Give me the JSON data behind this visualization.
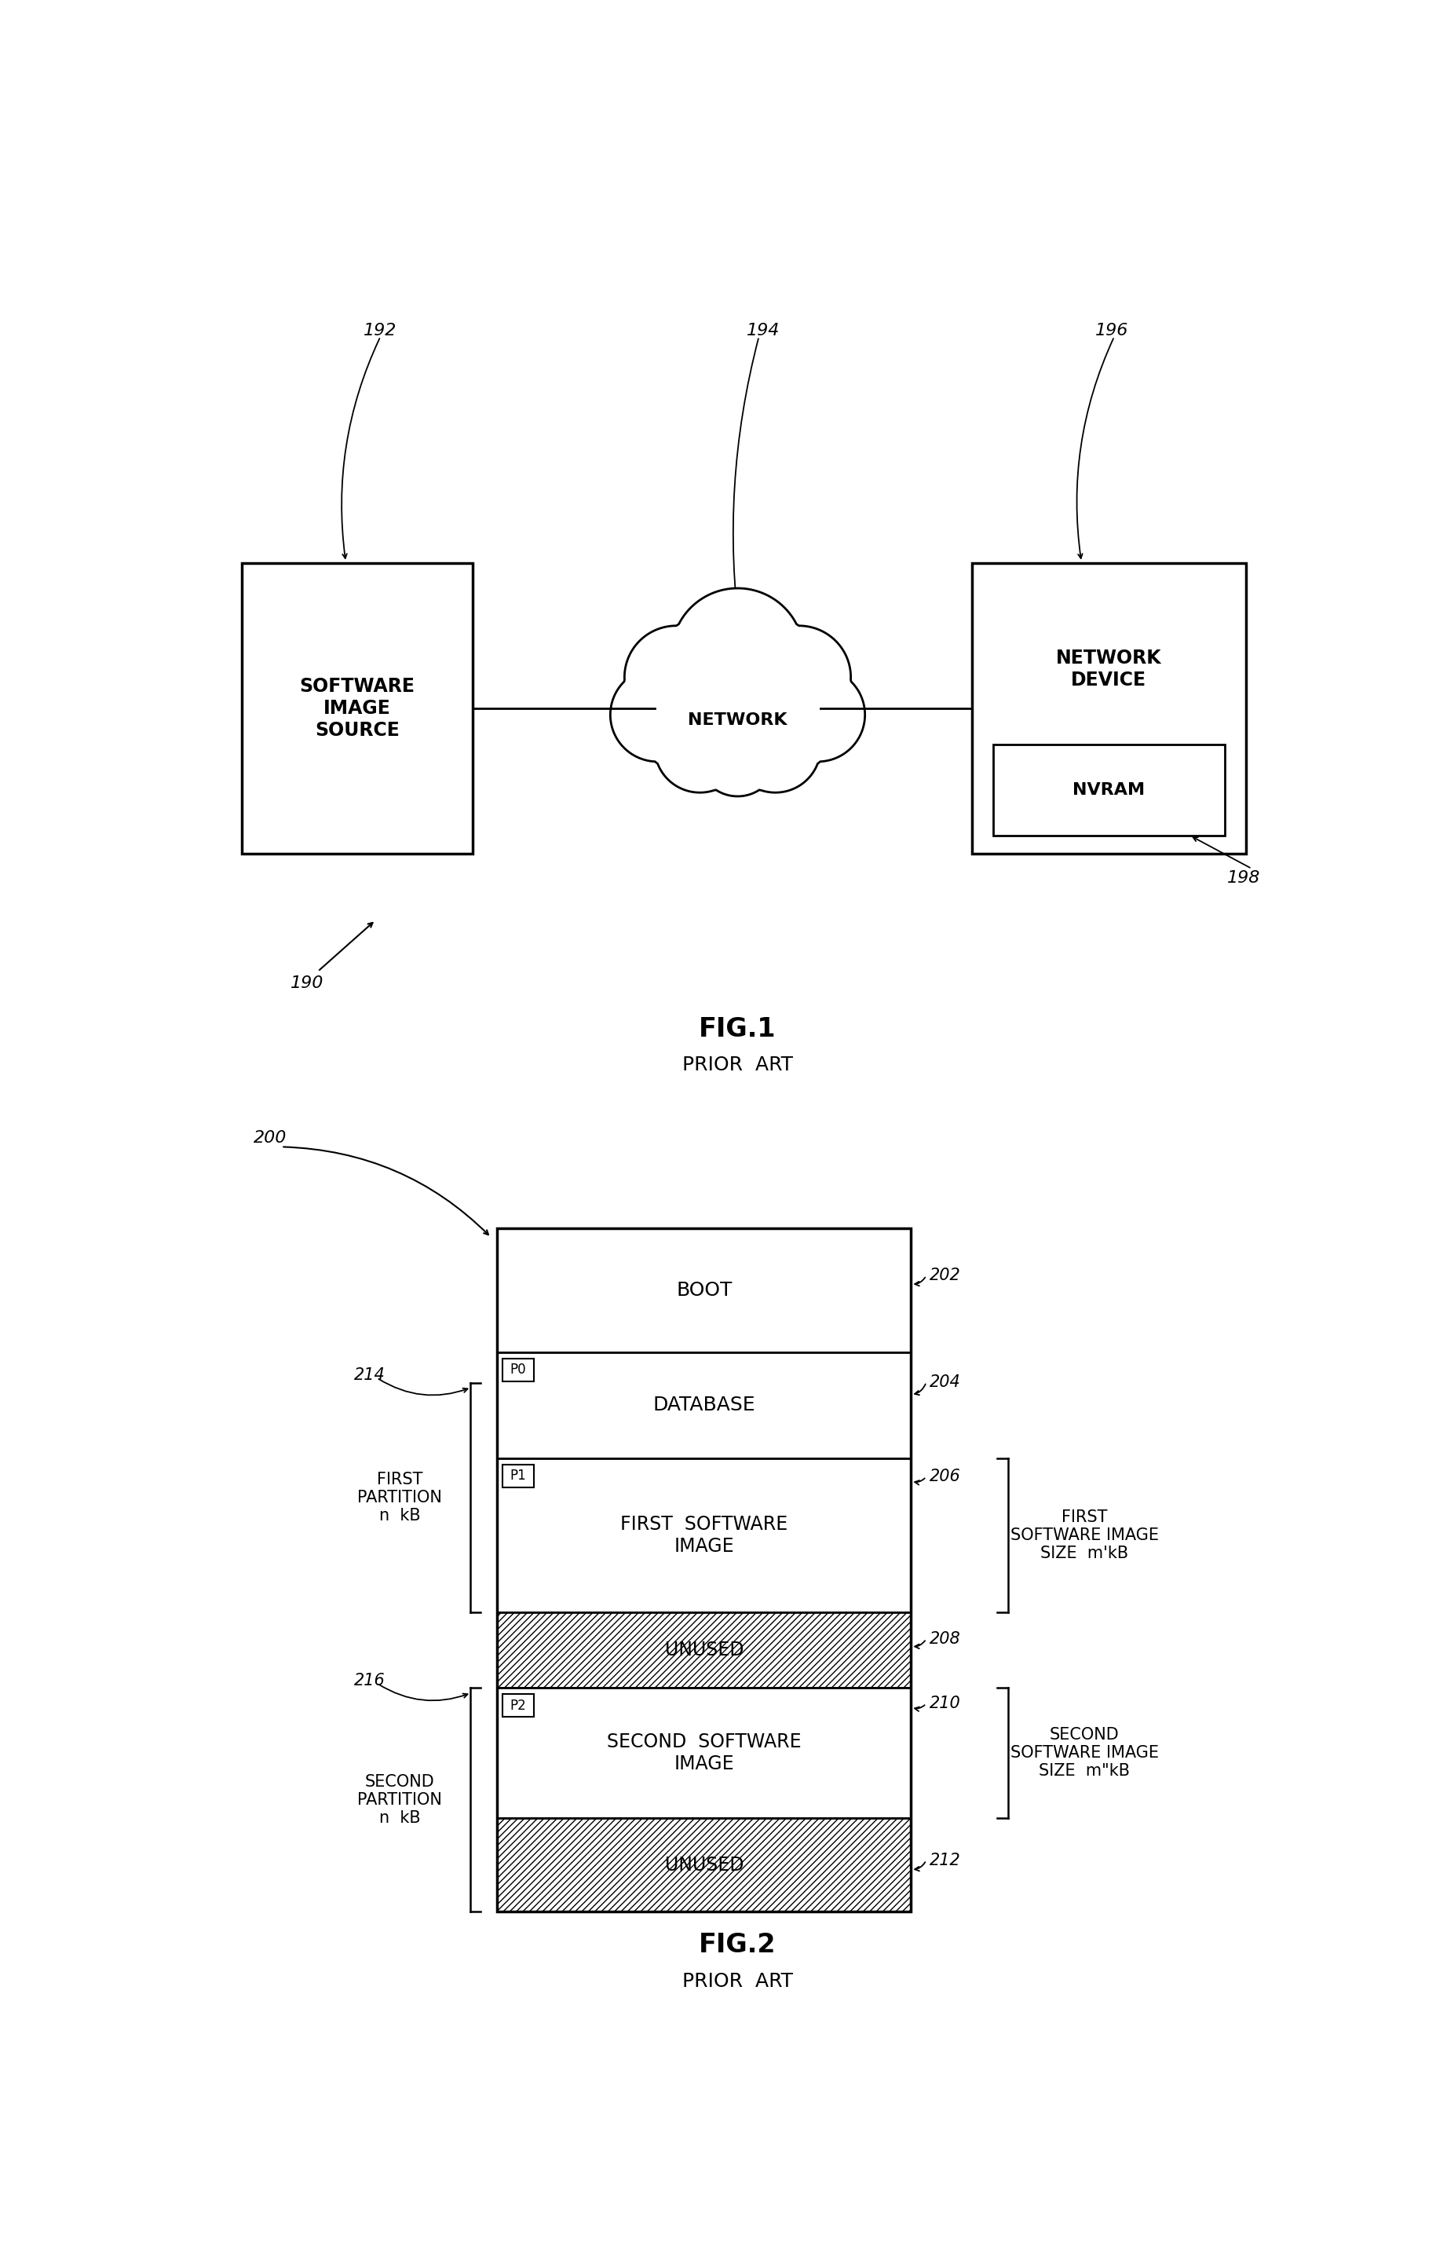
{
  "bg_color": "#ffffff",
  "fig_width": 18.43,
  "fig_height": 28.65,
  "fig1": {
    "title": "FIG.1",
    "subtitle": "PRIOR  ART",
    "ref_190": "190",
    "box_src_label": "SOFTWARE\nIMAGE\nSOURCE",
    "box_src_ref": "192",
    "cloud_label": "NETWORK",
    "cloud_ref": "194",
    "box_dev_label": "NETWORK\nDEVICE",
    "box_dev_ref": "196",
    "nvram_label": "NVRAM",
    "nvram_ref": "198"
  },
  "fig2": {
    "title": "FIG.2",
    "subtitle": "PRIOR  ART",
    "ref_200": "200",
    "boot_label": "BOOT",
    "boot_ref": "202",
    "db_label": "DATABASE",
    "db_ref": "204",
    "p0_label": "P0",
    "p1_label": "P1",
    "p1_ref": "206",
    "p1_text1": "FIRST  SOFTWARE\nIMAGE",
    "unused1_label": "UNUSED",
    "unused1_ref": "208",
    "p2_label": "P2",
    "p2_ref": "210",
    "p2_text1": "SECOND  SOFTWARE\nIMAGE",
    "unused2_label": "UNUSED",
    "unused2_ref": "212",
    "first_partition_ref": "214",
    "first_partition_label": "FIRST\nPARTITION\nn  kB",
    "second_partition_ref": "216",
    "second_partition_label": "SECOND\nPARTITION\nn  kB",
    "right_label1": "FIRST\nSOFTWARE IMAGE\nSIZE  m'kB",
    "right_label2": "SECOND\nSOFTWARE IMAGE\nSIZE  m\"kB"
  }
}
